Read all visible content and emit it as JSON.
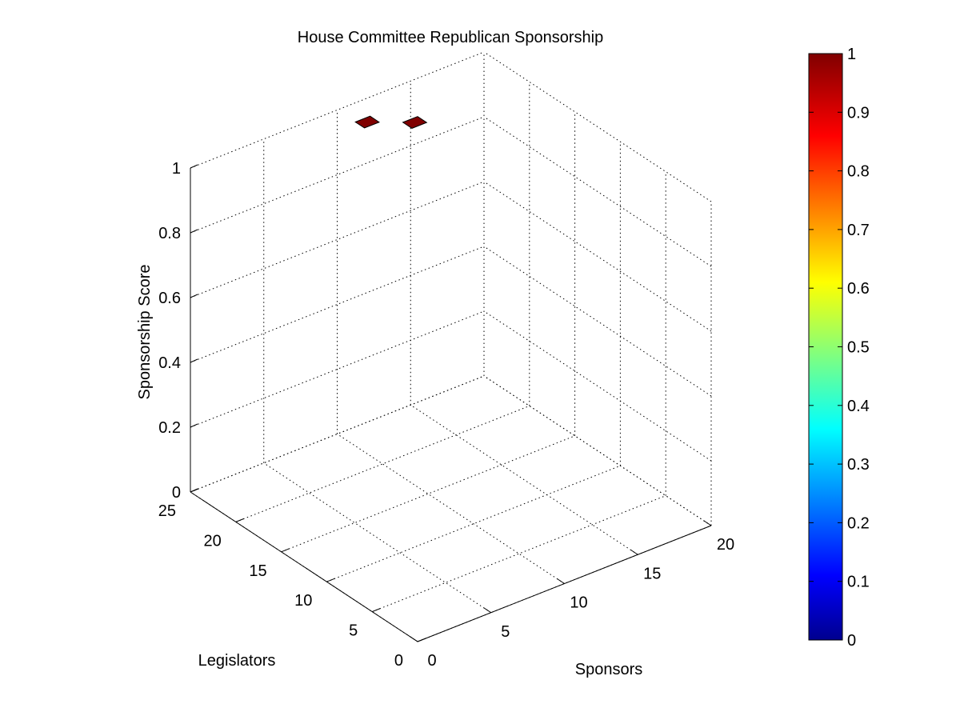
{
  "chart_data": {
    "type": "surface3d",
    "title": "House Committee Republican Sponsorship",
    "xlabel": "Sponsors",
    "ylabel": "Legislators",
    "zlabel": "Sponsorship Score",
    "xlim": [
      0,
      20
    ],
    "ylim": [
      0,
      25
    ],
    "zlim": [
      0,
      1
    ],
    "xticks": [
      "0",
      "5",
      "10",
      "15",
      "20"
    ],
    "yticks": [
      "0",
      "5",
      "10",
      "15",
      "20",
      "25"
    ],
    "zticks": [
      "0",
      "0.2",
      "0.4",
      "0.6",
      "0.8",
      "1"
    ],
    "grid": true,
    "colormap": "jet",
    "colorbar": {
      "limits": [
        0,
        1
      ],
      "ticks": [
        "0",
        "0.1",
        "0.2",
        "0.3",
        "0.4",
        "0.5",
        "0.6",
        "0.7",
        "0.8",
        "0.9",
        "1"
      ]
    },
    "patches": [
      {
        "sponsor": 12,
        "legislator": 20,
        "score": 1,
        "color": "#800000"
      },
      {
        "sponsor": 10,
        "legislator": 22,
        "score": 1,
        "color": "#800000"
      }
    ]
  }
}
